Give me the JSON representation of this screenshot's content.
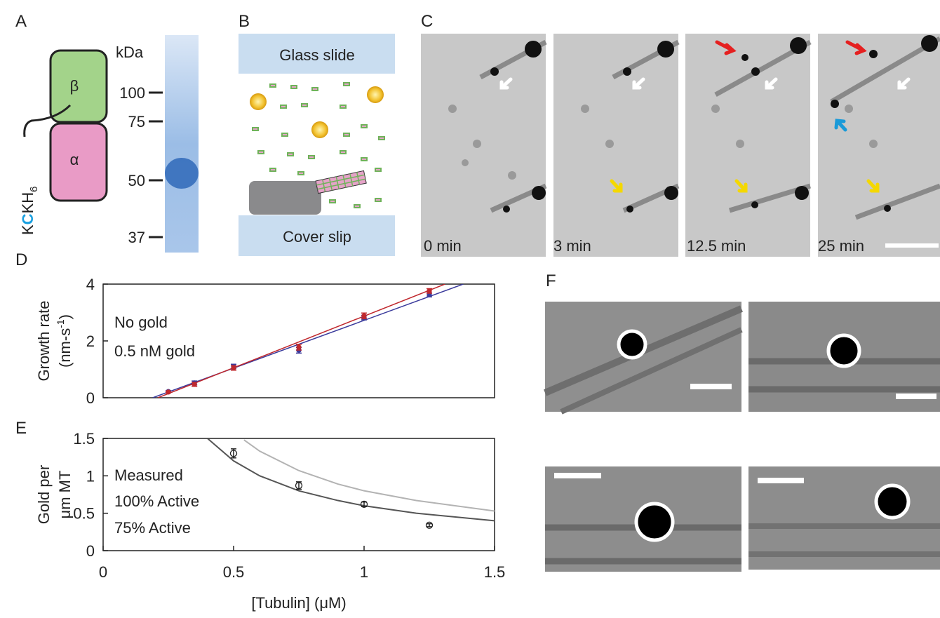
{
  "panel_labels": [
    "A",
    "B",
    "C",
    "D",
    "E",
    "F"
  ],
  "panel_a": {
    "kda_label": "kDa",
    "markers": [
      "100",
      "75",
      "50",
      "37"
    ],
    "beta": "β",
    "alpha": "α",
    "tag": [
      "K",
      "C",
      "KH",
      "6"
    ]
  },
  "panel_b": {
    "top": "Glass slide",
    "bottom": "Cover slip"
  },
  "panel_c": {
    "times": [
      "0 min",
      "3 min",
      "12.5 min",
      "25 min"
    ]
  },
  "chart_data": [
    {
      "type": "scatter",
      "ylabel": [
        "Growth rate",
        "(nm-s",
        "-1",
        ")"
      ],
      "x": [
        0.25,
        0.35,
        0.5,
        0.75,
        1,
        1.25
      ],
      "xlim": [
        0,
        1.5
      ],
      "ylim": [
        0,
        4
      ],
      "yticks": [
        0,
        2,
        4
      ],
      "series": [
        {
          "name": "No gold",
          "color": "#3b3b9c",
          "values": [
            0.22,
            0.52,
            1.1,
            1.67,
            2.82,
            3.62
          ],
          "errors": [
            0.03,
            0.07,
            0.08,
            0.1,
            0.08,
            0.07
          ],
          "fit_x": [
            0.19,
            1.38
          ],
          "fit_values": [
            0,
            4
          ]
        },
        {
          "name": "0.5 nM gold",
          "color": "#c0282d",
          "values": [
            0.2,
            0.47,
            1.05,
            1.78,
            2.88,
            3.76
          ],
          "errors": [
            0.03,
            0.07,
            0.08,
            0.1,
            0.1,
            0.08
          ],
          "fit_x": [
            0.21,
            1.31
          ],
          "fit_values": [
            0,
            4
          ]
        }
      ]
    },
    {
      "type": "scatter",
      "xlabel": "[Tubulin] (μM)",
      "ylabel": [
        "Gold per",
        "μm MT"
      ],
      "x": [
        0.5,
        0.75,
        1,
        1.25
      ],
      "xlim": [
        0,
        1.5
      ],
      "xticks": [
        0,
        0.5,
        1,
        1.5
      ],
      "ylim": [
        0,
        1.5
      ],
      "yticks": [
        0,
        0.5,
        1,
        1.5
      ],
      "series": [
        {
          "name": "Measured",
          "color": "#222222",
          "values": [
            1.3,
            0.87,
            0.62,
            0.34
          ],
          "errors": [
            0.06,
            0.05,
            0.03,
            0.02
          ],
          "marker": "circle-open"
        },
        {
          "name": "100% Active",
          "color": "#b3b3b3",
          "x": [
            0.54,
            0.6,
            0.75,
            0.9,
            1,
            1.2,
            1.5
          ],
          "values": [
            1.48,
            1.33,
            1.07,
            0.89,
            0.8,
            0.67,
            0.53
          ]
        },
        {
          "name": "75% Active",
          "color": "#555555",
          "x": [
            0.4,
            0.5,
            0.6,
            0.75,
            0.9,
            1,
            1.2,
            1.5
          ],
          "values": [
            1.5,
            1.2,
            1.0,
            0.8,
            0.67,
            0.6,
            0.5,
            0.4
          ]
        }
      ]
    }
  ]
}
